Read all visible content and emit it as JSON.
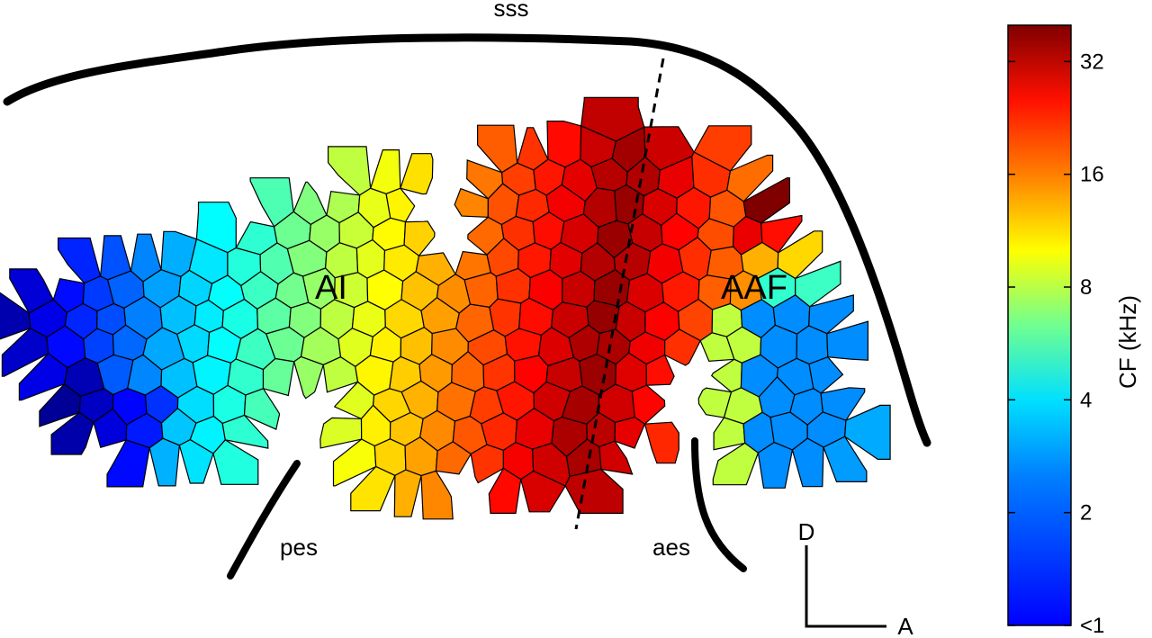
{
  "labels": {
    "sss": "sss",
    "pes": "pes",
    "aes": "aes",
    "field_ai": "AI",
    "field_aaf": "AAF",
    "orient_d": "D",
    "orient_a": "A"
  },
  "colorbar": {
    "title": "CF (kHz)",
    "ticks": [
      "32",
      "16",
      "8",
      "4",
      "2",
      "<1"
    ],
    "scale": "log2",
    "range_khz": [
      1,
      40
    ],
    "colormap": "jet"
  },
  "map": {
    "cf_gradient_khz": {
      "posterior_ventral": "<1",
      "ai_mid": "8",
      "ai_anterior": "16",
      "peak_near_dashed_line": "32",
      "aaf_low_band": "1"
    }
  }
}
